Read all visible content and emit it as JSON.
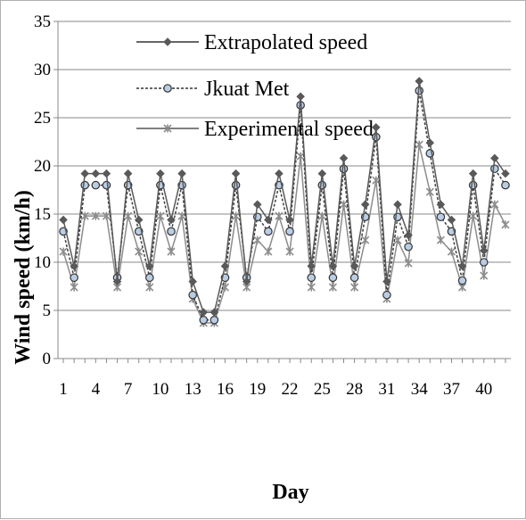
{
  "chart_data": {
    "type": "line",
    "title": "",
    "xlabel": "Day",
    "ylabel": "Wind speed (km/h)",
    "ylim": [
      0,
      35
    ],
    "yticks": [
      0,
      5,
      10,
      15,
      20,
      25,
      30,
      35
    ],
    "xtick_labels": [
      "1",
      "4",
      "7",
      "10",
      "13",
      "16",
      "19",
      "22",
      "25",
      "28",
      "31",
      "34",
      "37",
      "40"
    ],
    "grid": "horizontal",
    "legend_position": "top",
    "x": [
      1,
      2,
      3,
      4,
      5,
      6,
      7,
      8,
      9,
      10,
      11,
      12,
      13,
      14,
      15,
      16,
      17,
      18,
      19,
      20,
      21,
      22,
      23,
      24,
      25,
      26,
      27,
      28,
      29,
      30,
      31,
      32,
      33,
      34,
      35,
      36,
      37,
      38,
      39,
      40,
      41,
      42
    ],
    "series": [
      {
        "name": "Extrapolated speed",
        "color": "#595959",
        "marker": "diamond",
        "dash": "solid",
        "values": [
          14.4,
          9.6,
          19.2,
          19.2,
          19.2,
          8.0,
          19.2,
          14.4,
          9.6,
          19.2,
          14.4,
          19.2,
          8.0,
          4.8,
          4.8,
          9.6,
          19.2,
          8.0,
          16.0,
          14.4,
          19.2,
          14.4,
          27.2,
          9.6,
          19.2,
          9.6,
          20.8,
          9.6,
          16.0,
          24.0,
          8.0,
          16.0,
          12.8,
          28.8,
          22.4,
          16.0,
          14.4,
          9.6,
          19.2,
          11.2,
          20.8,
          19.2
        ]
      },
      {
        "name": "Jkuat Met",
        "color": "#404040",
        "marker": "circle",
        "dash": "dashed",
        "values": [
          13.2,
          8.4,
          18.0,
          18.0,
          18.0,
          8.4,
          18.0,
          13.2,
          8.4,
          18.0,
          13.2,
          18.0,
          6.6,
          4.0,
          4.0,
          8.4,
          18.0,
          8.4,
          14.7,
          13.2,
          18.0,
          13.2,
          26.3,
          8.4,
          18.0,
          8.4,
          19.7,
          8.4,
          14.7,
          23.0,
          6.6,
          14.7,
          11.6,
          27.8,
          21.3,
          14.7,
          13.2,
          8.1,
          18.0,
          10.0,
          19.7,
          18.0
        ]
      },
      {
        "name": "Experimental speed",
        "color": "#8c8c8c",
        "marker": "star",
        "dash": "solid",
        "values": [
          11.1,
          7.4,
          14.8,
          14.8,
          14.8,
          7.4,
          14.8,
          11.1,
          7.4,
          14.8,
          11.1,
          14.8,
          6.2,
          3.7,
          3.7,
          7.4,
          14.8,
          7.4,
          12.3,
          11.1,
          14.8,
          11.1,
          21.0,
          7.4,
          14.8,
          7.4,
          16.0,
          7.4,
          12.3,
          18.5,
          6.2,
          12.3,
          9.9,
          22.2,
          17.3,
          12.3,
          11.1,
          7.4,
          14.8,
          8.6,
          16.0,
          13.9
        ]
      }
    ]
  }
}
